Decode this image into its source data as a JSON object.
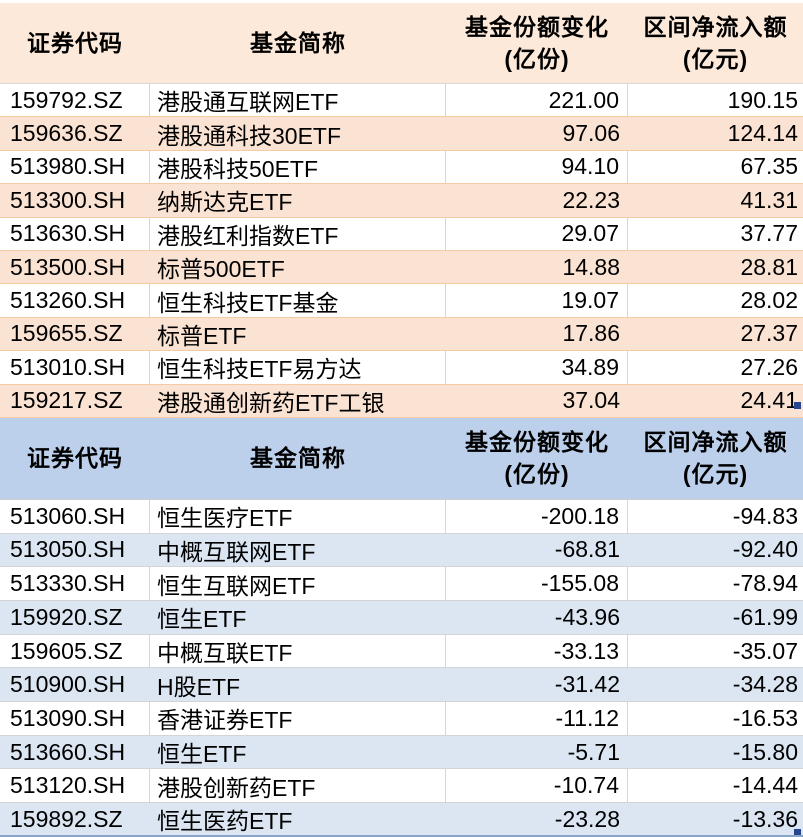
{
  "colors": {
    "inflow_header_bg": "#fce9da",
    "inflow_row_alt_bg": "#fbe3d3",
    "inflow_grid_line": "#f5cba6",
    "outflow_header_bg": "#bcd0eb",
    "outflow_row_alt_bg": "#dbe6f2",
    "outflow_grid_line": "#d4d4d4",
    "white_row_bg": "#ffffff",
    "selection_handle": "#26478f",
    "bottom_border": "#88a4c6",
    "text": "#000000"
  },
  "columns": {
    "code": "证券代码",
    "name": "基金简称",
    "share_change_line1": "基金份额变化",
    "share_change_line2": "(亿份)",
    "net_inflow_line1": "区间净流入额",
    "net_inflow_line2": "(亿元)"
  },
  "inflow": {
    "rows": [
      {
        "code": "159792.SZ",
        "name": "港股通互联网ETF",
        "share_change": "221.00",
        "net_inflow": "190.15"
      },
      {
        "code": "159636.SZ",
        "name": "港股通科技30ETF",
        "share_change": "97.06",
        "net_inflow": "124.14"
      },
      {
        "code": "513980.SH",
        "name": "港股科技50ETF",
        "share_change": "94.10",
        "net_inflow": "67.35"
      },
      {
        "code": "513300.SH",
        "name": "纳斯达克ETF",
        "share_change": "22.23",
        "net_inflow": "41.31"
      },
      {
        "code": "513630.SH",
        "name": "港股红利指数ETF",
        "share_change": "29.07",
        "net_inflow": "37.77"
      },
      {
        "code": "513500.SH",
        "name": "标普500ETF",
        "share_change": "14.88",
        "net_inflow": "28.81"
      },
      {
        "code": "513260.SH",
        "name": "恒生科技ETF基金",
        "share_change": "19.07",
        "net_inflow": "28.02"
      },
      {
        "code": "159655.SZ",
        "name": "标普ETF",
        "share_change": "17.86",
        "net_inflow": "27.37"
      },
      {
        "code": "513010.SH",
        "name": "恒生科技ETF易方达",
        "share_change": "34.89",
        "net_inflow": "27.26"
      },
      {
        "code": "159217.SZ",
        "name": "港股通创新药ETF工银",
        "share_change": "37.04",
        "net_inflow": "24.41"
      }
    ]
  },
  "outflow": {
    "rows": [
      {
        "code": "513060.SH",
        "name": "恒生医疗ETF",
        "share_change": "-200.18",
        "net_inflow": "-94.83"
      },
      {
        "code": "513050.SH",
        "name": "中概互联网ETF",
        "share_change": "-68.81",
        "net_inflow": "-92.40"
      },
      {
        "code": "513330.SH",
        "name": "恒生互联网ETF",
        "share_change": "-155.08",
        "net_inflow": "-78.94"
      },
      {
        "code": "159920.SZ",
        "name": "恒生ETF",
        "share_change": "-43.96",
        "net_inflow": "-61.99"
      },
      {
        "code": "159605.SZ",
        "name": "中概互联ETF",
        "share_change": "-33.13",
        "net_inflow": "-35.07"
      },
      {
        "code": "510900.SH",
        "name": "H股ETF",
        "share_change": "-31.42",
        "net_inflow": "-34.28"
      },
      {
        "code": "513090.SH",
        "name": "香港证券ETF",
        "share_change": "-11.12",
        "net_inflow": "-16.53"
      },
      {
        "code": "513660.SH",
        "name": "恒生ETF",
        "share_change": "-5.71",
        "net_inflow": "-15.80"
      },
      {
        "code": "513120.SH",
        "name": "港股创新药ETF",
        "share_change": "-10.74",
        "net_inflow": "-14.44"
      },
      {
        "code": "159892.SZ",
        "name": "恒生医药ETF",
        "share_change": "-23.28",
        "net_inflow": "-13.36"
      }
    ]
  }
}
